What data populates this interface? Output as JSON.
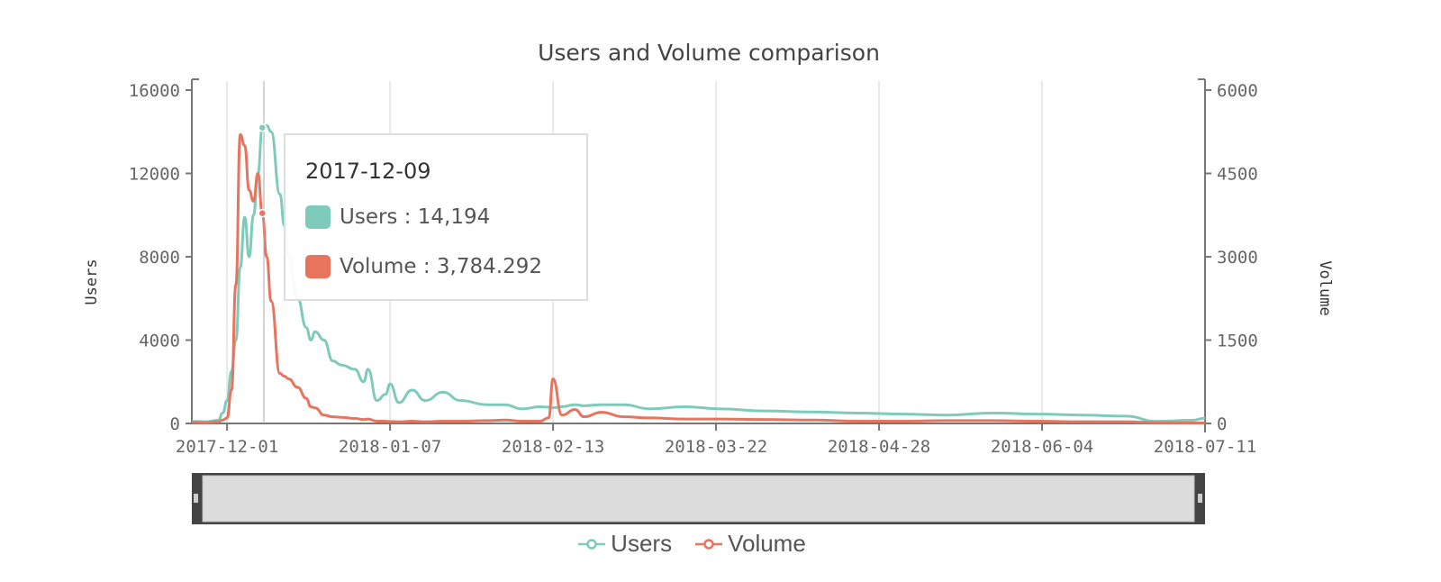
{
  "chart_data": {
    "type": "line",
    "title": "Users and Volume comparison",
    "xlabel": "",
    "ylabel_left": "Users",
    "ylabel_right": "Volume",
    "x_range": [
      "2017-11-23",
      "2018-07-11"
    ],
    "ylim_left": [
      0,
      16000
    ],
    "ylim_right": [
      0,
      6000
    ],
    "grid": "vertical",
    "legend_position": "bottom-center",
    "x_ticks": [
      "2017-12-01",
      "2018-01-07",
      "2018-02-13",
      "2018-03-22",
      "2018-04-28",
      "2018-06-04",
      "2018-07-11"
    ],
    "y_ticks_left": [
      "0",
      "4000",
      "8000",
      "12000",
      "16000"
    ],
    "y_ticks_right": [
      "0",
      "1500",
      "3000",
      "4500",
      "6000"
    ],
    "x": [
      "2017-11-23",
      "2017-11-26",
      "2017-11-29",
      "2017-11-30",
      "2017-12-01",
      "2017-12-02",
      "2017-12-03",
      "2017-12-04",
      "2017-12-05",
      "2017-12-06",
      "2017-12-07",
      "2017-12-08",
      "2017-12-09",
      "2017-12-10",
      "2017-12-11",
      "2017-12-13",
      "2017-12-14",
      "2017-12-15",
      "2017-12-17",
      "2017-12-19",
      "2017-12-20",
      "2017-12-21",
      "2017-12-23",
      "2017-12-25",
      "2017-12-27",
      "2017-12-30",
      "2018-01-01",
      "2018-01-02",
      "2018-01-04",
      "2018-01-06",
      "2018-01-07",
      "2018-01-09",
      "2018-01-12",
      "2018-01-15",
      "2018-01-19",
      "2018-01-23",
      "2018-01-29",
      "2018-02-02",
      "2018-02-06",
      "2018-02-10",
      "2018-02-12",
      "2018-02-13",
      "2018-02-15",
      "2018-02-18",
      "2018-02-20",
      "2018-02-24",
      "2018-03-01",
      "2018-03-07",
      "2018-03-15",
      "2018-03-23",
      "2018-04-02",
      "2018-04-13",
      "2018-04-23",
      "2018-05-03",
      "2018-05-13",
      "2018-05-24",
      "2018-06-03",
      "2018-06-13",
      "2018-06-23",
      "2018-06-30",
      "2018-07-08",
      "2018-07-11"
    ],
    "series": [
      {
        "name": "Users",
        "axis": "left",
        "color": "#7ecbbb",
        "values": [
          100,
          80,
          150,
          500,
          1100,
          2500,
          4000,
          7500,
          9900,
          8000,
          10000,
          12000,
          14194,
          14300,
          14000,
          11000,
          9500,
          8000,
          6000,
          4600,
          4000,
          4400,
          4000,
          3000,
          2800,
          2600,
          2000,
          2600,
          1100,
          1400,
          1900,
          1000,
          1600,
          1100,
          1500,
          1100,
          900,
          900,
          700,
          800,
          780,
          750,
          800,
          900,
          850,
          900,
          900,
          700,
          800,
          700,
          600,
          550,
          500,
          450,
          400,
          500,
          450,
          400,
          350,
          100,
          150,
          250
        ]
      },
      {
        "name": "Volume",
        "axis": "right",
        "color": "#e8745e",
        "values": [
          20,
          15,
          30,
          60,
          100,
          600,
          2500,
          5200,
          5000,
          4200,
          4000,
          4500,
          3784.292,
          3000,
          2200,
          900,
          850,
          800,
          650,
          450,
          300,
          280,
          150,
          120,
          110,
          90,
          70,
          80,
          40,
          40,
          35,
          30,
          40,
          30,
          40,
          40,
          50,
          60,
          40,
          40,
          100,
          800,
          150,
          250,
          120,
          200,
          120,
          100,
          80,
          80,
          70,
          60,
          40,
          40,
          50,
          50,
          40,
          30,
          30,
          15,
          10,
          10
        ]
      }
    ],
    "tooltip": {
      "date": "2017-12-09",
      "users_label": "Users : 14,194",
      "volume_label": "Volume : 3,784.292"
    },
    "data_zoom_range": [
      0,
      100
    ]
  }
}
